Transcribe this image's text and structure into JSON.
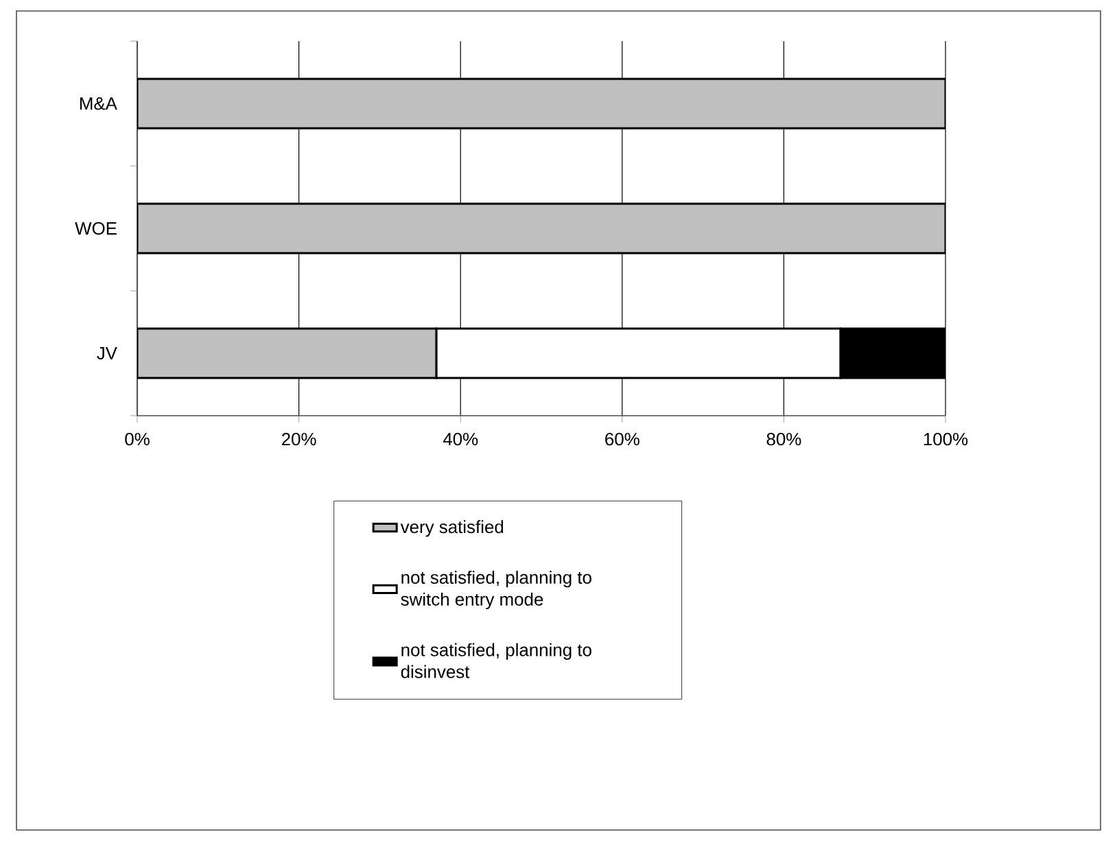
{
  "chart_data": {
    "type": "bar",
    "orientation": "horizontal",
    "stacked": true,
    "categories": [
      "M&A",
      "WOE",
      "JV"
    ],
    "series": [
      {
        "name": "very satisfied",
        "color": "#c0c0c0",
        "values": [
          100,
          100,
          37
        ]
      },
      {
        "name": "not satisfied, planning to switch entry mode",
        "color": "#ffffff",
        "values": [
          0,
          0,
          50
        ]
      },
      {
        "name": "not satisfied, planning to disinvest",
        "color": "#000000",
        "values": [
          0,
          0,
          13
        ]
      }
    ],
    "xlim": [
      0,
      100
    ],
    "xticks": [
      {
        "value": 0,
        "label": "0%"
      },
      {
        "value": 20,
        "label": "20%"
      },
      {
        "value": 40,
        "label": "40%"
      },
      {
        "value": 60,
        "label": "60%"
      },
      {
        "value": 80,
        "label": "80%"
      },
      {
        "value": 100,
        "label": "100%"
      }
    ],
    "grid": "x",
    "legend": "bottom"
  }
}
